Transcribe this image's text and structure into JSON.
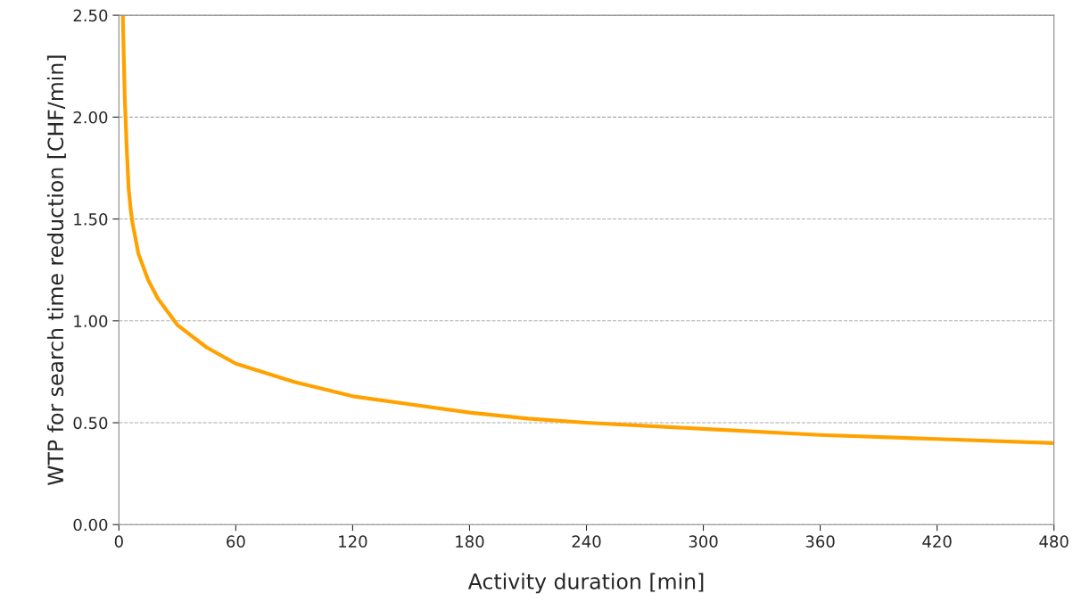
{
  "chart_data": {
    "type": "line",
    "xlabel": "Activity duration [min]",
    "ylabel": "WTP for search time reduction [CHF/min]",
    "x": [
      2,
      3,
      4,
      5,
      6,
      7,
      10,
      15,
      20,
      30,
      45,
      60,
      90,
      120,
      150,
      180,
      210,
      240,
      300,
      360,
      420,
      480
    ],
    "series": [
      {
        "color": "#ffa200",
        "values": [
          2.5,
          2.1,
          1.85,
          1.65,
          1.55,
          1.48,
          1.33,
          1.2,
          1.11,
          0.98,
          0.87,
          0.79,
          0.7,
          0.63,
          0.59,
          0.55,
          0.52,
          0.5,
          0.47,
          0.44,
          0.42,
          0.4
        ]
      }
    ],
    "xlim": [
      0,
      480
    ],
    "xticks": [
      0,
      60,
      120,
      180,
      240,
      300,
      360,
      420,
      480
    ],
    "ylim": [
      0,
      2.5
    ],
    "yticks": [
      {
        "value": 0,
        "label": "0.00"
      },
      {
        "value": 0.5,
        "label": "0.50"
      },
      {
        "value": 1,
        "label": "1.00"
      },
      {
        "value": 1.5,
        "label": "1.50"
      },
      {
        "value": 2,
        "label": "2.00"
      },
      {
        "value": 2.5,
        "label": "2.50"
      }
    ],
    "grid": "y",
    "line_style": "solid",
    "marker": "none"
  }
}
